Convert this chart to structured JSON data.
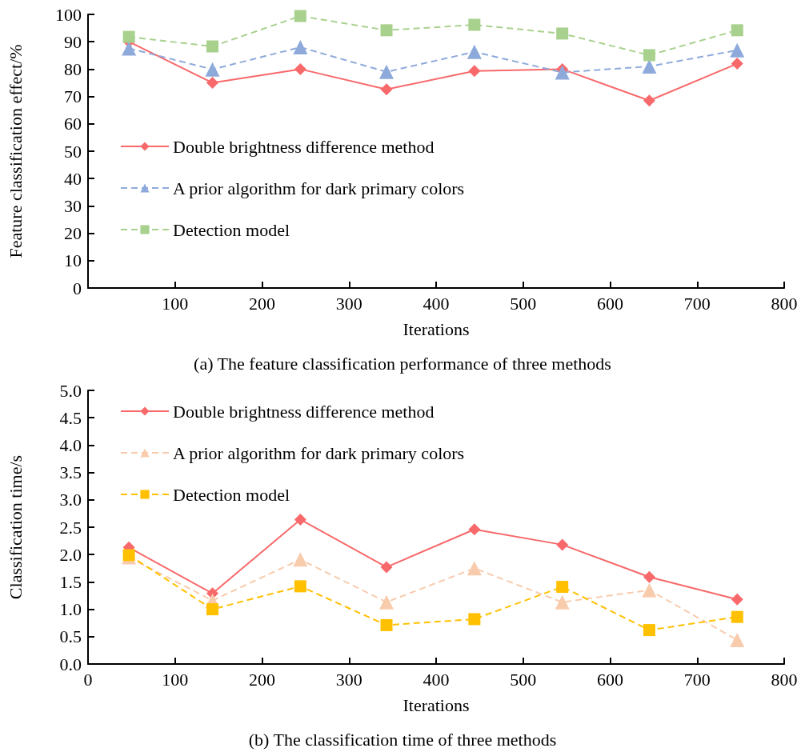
{
  "chart_data": [
    {
      "type": "line",
      "title": "(a) The feature classification performance of three methods",
      "xlabel": "Iterations",
      "ylabel": "Feature classification effect/%",
      "legend": "left",
      "grid": false,
      "xlim": [
        0,
        800
      ],
      "xticks": [
        {
          "value": 0,
          "label": null
        },
        100,
        200,
        300,
        400,
        500,
        600,
        700,
        800
      ],
      "ylim": [
        0,
        100
      ],
      "yticks": [
        0,
        10,
        20,
        30,
        40,
        50,
        60,
        70,
        80,
        90,
        100
      ],
      "series": [
        {
          "name": "Double brightness difference method",
          "color": "#f8696b",
          "marker": "diamond",
          "line_style": "solid",
          "x": [
            47,
            143,
            244,
            343,
            444,
            545,
            645,
            746
          ],
          "values": [
            90,
            75,
            80,
            72.6,
            79.3,
            80,
            68.5,
            82
          ]
        },
        {
          "name": "A prior algorithm for dark primary colors",
          "color": "#8eaadb",
          "marker": "triangle",
          "line_style": "dashed",
          "x": [
            47,
            143,
            244,
            343,
            444,
            545,
            645,
            746
          ],
          "values": [
            87.6,
            79.9,
            88,
            79,
            86.3,
            78.8,
            81,
            86.9
          ]
        },
        {
          "name": "Detection model",
          "color": "#a9d18e",
          "marker": "square",
          "line_style": "dashed",
          "x": [
            47,
            143,
            244,
            343,
            444,
            545,
            645,
            746
          ],
          "values": [
            91.8,
            88.3,
            99.4,
            94.2,
            96.2,
            93,
            85.1,
            94.2
          ]
        }
      ]
    },
    {
      "type": "line",
      "title": "(b) The classification time of three methods",
      "xlabel": "Iterations",
      "ylabel": "Classification time/s",
      "legend": "top left",
      "grid": false,
      "xlim": [
        0,
        800
      ],
      "xticks": [
        0,
        100,
        200,
        300,
        400,
        500,
        600,
        700,
        800
      ],
      "ylim": [
        0,
        5
      ],
      "yticks": [
        {
          "value": 0,
          "label": "0.0"
        },
        0.5,
        {
          "value": 1,
          "label": "1.0"
        },
        1.5,
        {
          "value": 2,
          "label": "2.0"
        },
        2.5,
        {
          "value": 3,
          "label": "3.0"
        },
        3.5,
        {
          "value": 4,
          "label": "4.0"
        },
        4.5,
        {
          "value": 5,
          "label": "5.0"
        }
      ],
      "series": [
        {
          "name": "Double brightness difference method",
          "color": "#f8696b",
          "marker": "diamond",
          "line_style": "solid",
          "x": [
            47,
            143,
            244,
            343,
            444,
            545,
            645,
            746
          ],
          "values": [
            2.13,
            1.29,
            2.64,
            1.77,
            2.46,
            2.18,
            1.59,
            1.18
          ]
        },
        {
          "name": "A prior algorithm for dark primary colors",
          "color": "#f8cbad",
          "marker": "triangle",
          "line_style": "dashed",
          "x": [
            47,
            143,
            244,
            343,
            444,
            545,
            645,
            746
          ],
          "values": [
            1.95,
            1.16,
            1.91,
            1.13,
            1.75,
            1.13,
            1.35,
            0.44
          ]
        },
        {
          "name": "Detection model",
          "color": "#ffc000",
          "marker": "square",
          "line_style": "dashed",
          "x": [
            47,
            143,
            244,
            343,
            444,
            545,
            645,
            746
          ],
          "values": [
            1.99,
            1.0,
            1.42,
            0.71,
            0.82,
            1.41,
            0.62,
            0.86
          ]
        }
      ]
    }
  ]
}
